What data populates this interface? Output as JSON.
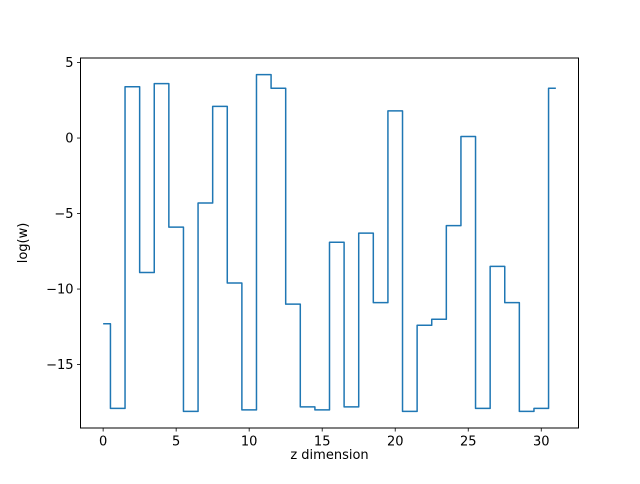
{
  "figure": {
    "background": "#ffffff"
  },
  "chart_data": {
    "type": "line",
    "step_style": "mid",
    "title": "",
    "xlabel": "z dimension",
    "ylabel": "log(w)",
    "x": [
      0,
      1,
      2,
      3,
      4,
      5,
      6,
      7,
      8,
      9,
      10,
      11,
      12,
      13,
      14,
      15,
      16,
      17,
      18,
      19,
      20,
      21,
      22,
      23,
      24,
      25,
      26,
      27,
      28,
      29,
      30,
      31
    ],
    "values": [
      -12.3,
      -17.9,
      3.4,
      -8.9,
      3.6,
      -5.9,
      -18.1,
      -4.3,
      2.1,
      -9.6,
      -18.0,
      4.2,
      3.3,
      -11.0,
      -17.8,
      -18.0,
      -6.9,
      -17.8,
      -6.3,
      -10.9,
      1.8,
      -18.1,
      -12.4,
      -12.0,
      -5.8,
      0.1,
      -17.9,
      -8.5,
      -10.9,
      -18.1,
      -17.9,
      3.3
    ],
    "xlim": [
      -1.55,
      32.55
    ],
    "ylim": [
      -19.2,
      5.3
    ],
    "xticks": [
      0,
      5,
      10,
      15,
      20,
      25,
      30
    ],
    "xtick_labels": [
      "0",
      "5",
      "10",
      "15",
      "20",
      "25",
      "30"
    ],
    "yticks": [
      -15,
      -10,
      -5,
      0,
      5
    ],
    "ytick_labels": [
      "−15",
      "−10",
      "−5",
      "0",
      "5"
    ],
    "grid": false,
    "legend": null,
    "line_color": "#1f77b4",
    "axis_color": "#000000"
  }
}
